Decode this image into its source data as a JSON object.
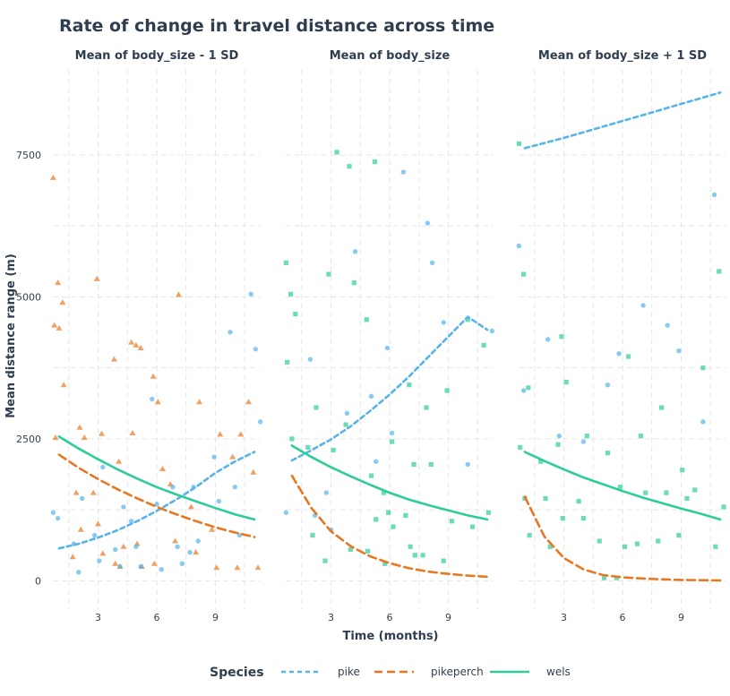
{
  "chart_data": {
    "type": "scatter",
    "title": "Rate of change in travel distance across time",
    "xlabel": "Time (months)",
    "ylabel": "Mean distance range (m)",
    "xlim": [
      0.5,
      11.5
    ],
    "ylim": [
      -500,
      9000
    ],
    "x_ticks": [
      3,
      6,
      9
    ],
    "y_ticks": [
      0,
      2500,
      5000,
      7500
    ],
    "grid": true,
    "legend": {
      "title": "Species",
      "position": "bottom",
      "entries": [
        {
          "name": "pike",
          "color": "#56B4E9",
          "linestyle": "dotted"
        },
        {
          "name": "pikeperch",
          "color": "#E87722",
          "linestyle": "dashed"
        },
        {
          "name": "wels",
          "color": "#2ECC9A",
          "linestyle": "solid"
        }
      ]
    },
    "panels": [
      {
        "label": "Mean of body_size - 1 SD",
        "lines": [
          {
            "species": "pike",
            "x": [
              1,
              2,
              3,
              4,
              5,
              6,
              7,
              8,
              9,
              10,
              11
            ],
            "y": [
              570,
              650,
              760,
              890,
              1050,
              1230,
              1430,
              1650,
              1900,
              2100,
              2270
            ]
          },
          {
            "species": "pikeperch",
            "x": [
              1,
              2,
              3,
              4,
              5,
              6,
              7,
              8,
              9,
              10,
              11
            ],
            "y": [
              2220,
              1990,
              1790,
              1610,
              1450,
              1300,
              1170,
              1050,
              940,
              850,
              770
            ]
          },
          {
            "species": "wels",
            "x": [
              1,
              2,
              3,
              4,
              5,
              6,
              7,
              8,
              9,
              10,
              11
            ],
            "y": [
              2540,
              2330,
              2140,
              1960,
              1800,
              1650,
              1520,
              1400,
              1280,
              1170,
              1080
            ]
          }
        ],
        "points": [
          {
            "species": "pikeperch",
            "x": [
              1,
              1,
              1,
              1,
              1,
              1,
              1,
              2,
              2,
              2,
              2,
              2,
              3,
              3,
              3,
              3,
              3,
              4,
              4,
              4,
              4,
              4,
              5,
              5,
              5,
              5,
              5,
              5,
              6,
              6,
              6,
              6,
              7,
              7,
              7,
              8,
              8,
              8,
              9,
              9,
              9,
              10,
              10,
              10,
              11,
              11,
              11
            ],
            "y": [
              7100,
              5250,
              4900,
              4500,
              4450,
              3450,
              2520,
              2700,
              2520,
              1550,
              900,
              420,
              5320,
              2590,
              1550,
              1000,
              480,
              3900,
              2100,
              600,
              300,
              250,
              4200,
              4150,
              4100,
              2600,
              650,
              250,
              3600,
              3150,
              1970,
              300,
              5040,
              1700,
              700,
              3150,
              1300,
              500,
              2580,
              900,
              230,
              2580,
              2180,
              230,
              3150,
              1910,
              230
            ]
          },
          {
            "species": "pike",
            "x": [
              1,
              1,
              2,
              2,
              2,
              3,
              3,
              3,
              4,
              4,
              4,
              5,
              5,
              5,
              6,
              6,
              6,
              7,
              7,
              7,
              8,
              8,
              8,
              9,
              9,
              10,
              10,
              10,
              11,
              11,
              11
            ],
            "y": [
              1200,
              1100,
              1450,
              650,
              150,
              2000,
              800,
              350,
              1300,
              550,
              250,
              1050,
              600,
              250,
              3200,
              1350,
              200,
              1650,
              600,
              300,
              1650,
              700,
              500,
              2180,
              1400,
              4380,
              1650,
              800,
              5050,
              4080,
              2800
            ]
          }
        ]
      },
      {
        "label": "Mean of body_size",
        "lines": [
          {
            "species": "pike",
            "x": [
              1,
              2,
              3,
              4,
              5,
              6,
              7,
              8,
              9,
              10,
              11
            ],
            "y": [
              2120,
              2300,
              2490,
              2720,
              2990,
              3280,
              3600,
              3950,
              4300,
              4650,
              4420
            ]
          },
          {
            "species": "pikeperch",
            "x": [
              1,
              2,
              3,
              4,
              5,
              6,
              7,
              8,
              9,
              10,
              11
            ],
            "y": [
              1850,
              1280,
              870,
              610,
              430,
              310,
              220,
              160,
              120,
              90,
              70
            ]
          },
          {
            "species": "wels",
            "x": [
              1,
              2,
              3,
              4,
              5,
              6,
              7,
              8,
              9,
              10,
              11
            ],
            "y": [
              2380,
              2180,
              2000,
              1840,
              1690,
              1550,
              1430,
              1330,
              1240,
              1150,
              1080
            ]
          }
        ],
        "points": [
          {
            "species": "wels",
            "x": [
              1,
              1,
              1,
              1,
              1,
              2,
              2,
              2,
              3,
              3,
              3,
              3,
              4,
              4,
              4,
              4,
              5,
              5,
              5,
              5,
              5,
              6,
              6,
              6,
              6,
              6,
              7,
              7,
              7,
              7,
              7,
              8,
              8,
              8,
              9,
              9,
              9,
              10,
              10,
              11,
              11
            ],
            "y": [
              5600,
              5050,
              4700,
              3850,
              2500,
              3050,
              2350,
              800,
              7550,
              5400,
              2300,
              350,
              7300,
              5250,
              2750,
              550,
              7380,
              4600,
              1850,
              1080,
              520,
              2450,
              1550,
              1200,
              950,
              300,
              3450,
              2050,
              1150,
              600,
              450,
              3050,
              2050,
              450,
              3350,
              1050,
              350,
              4600,
              950,
              4150,
              1200
            ]
          },
          {
            "species": "pike",
            "x": [
              1,
              2,
              2,
              3,
              3,
              4,
              4,
              5,
              5,
              6,
              6,
              7,
              8,
              8,
              9,
              10,
              11
            ],
            "y": [
              1200,
              3900,
              1150,
              1550,
              900,
              5800,
              2950,
              3250,
              2100,
              4100,
              2600,
              7200,
              6300,
              5600,
              4550,
              2050,
              4400
            ]
          }
        ]
      },
      {
        "label": "Mean of body_size + 1 SD",
        "lines": [
          {
            "species": "pike",
            "x": [
              1,
              2,
              3,
              4,
              5,
              6,
              7,
              8,
              9,
              10,
              11
            ],
            "y": [
              7620,
              7710,
              7800,
              7900,
              8000,
              8100,
              8200,
              8300,
              8400,
              8500,
              8600
            ]
          },
          {
            "species": "pikeperch",
            "x": [
              1,
              2,
              3,
              4,
              5,
              6,
              7,
              8,
              9,
              10,
              11
            ],
            "y": [
              1480,
              780,
              400,
              200,
              100,
              60,
              40,
              25,
              15,
              10,
              5
            ]
          },
          {
            "species": "wels",
            "x": [
              1,
              2,
              3,
              4,
              5,
              6,
              7,
              8,
              9,
              10,
              11
            ],
            "y": [
              2270,
              2110,
              1960,
              1820,
              1700,
              1580,
              1470,
              1370,
              1270,
              1180,
              1080
            ]
          }
        ],
        "points": [
          {
            "species": "wels",
            "x": [
              1,
              1,
              1,
              1,
              1,
              1,
              2,
              2,
              2,
              3,
              3,
              3,
              3,
              4,
              4,
              4,
              5,
              5,
              5,
              6,
              6,
              6,
              6,
              7,
              7,
              7,
              8,
              8,
              8,
              9,
              9,
              9,
              10,
              10,
              11,
              11,
              11
            ],
            "y": [
              7700,
              5400,
              3400,
              2350,
              1450,
              800,
              2100,
              1450,
              600,
              4300,
              3500,
              2400,
              1100,
              2550,
              1400,
              1100,
              2250,
              700,
              50,
              3950,
              1650,
              600,
              50,
              2550,
              1550,
              650,
              3050,
              1550,
              700,
              1950,
              1450,
              800,
              3750,
              1600,
              5450,
              1300,
              600
            ]
          },
          {
            "species": "pike",
            "x": [
              1,
              1,
              2,
              3,
              4,
              5,
              6,
              7,
              8,
              9,
              10,
              11
            ],
            "y": [
              5900,
              3350,
              4250,
              2550,
              2450,
              3450,
              4000,
              4850,
              4500,
              4050,
              2800,
              6800
            ]
          }
        ]
      }
    ]
  }
}
